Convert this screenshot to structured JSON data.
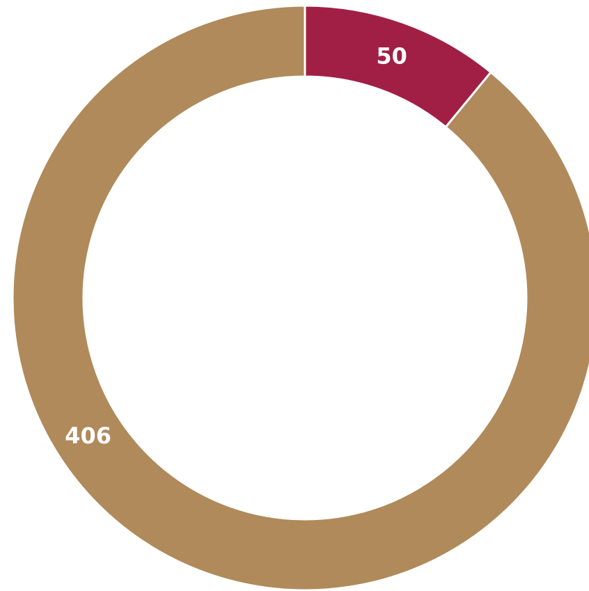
{
  "chart_data": {
    "type": "pie",
    "style": "donut",
    "title": "",
    "slices": [
      {
        "label": "50",
        "value": 50,
        "color": "#A11F45"
      },
      {
        "label": "406",
        "value": 406,
        "color": "#B08A5A"
      }
    ],
    "start": "top",
    "direction": "clockwise",
    "legend": "none"
  }
}
